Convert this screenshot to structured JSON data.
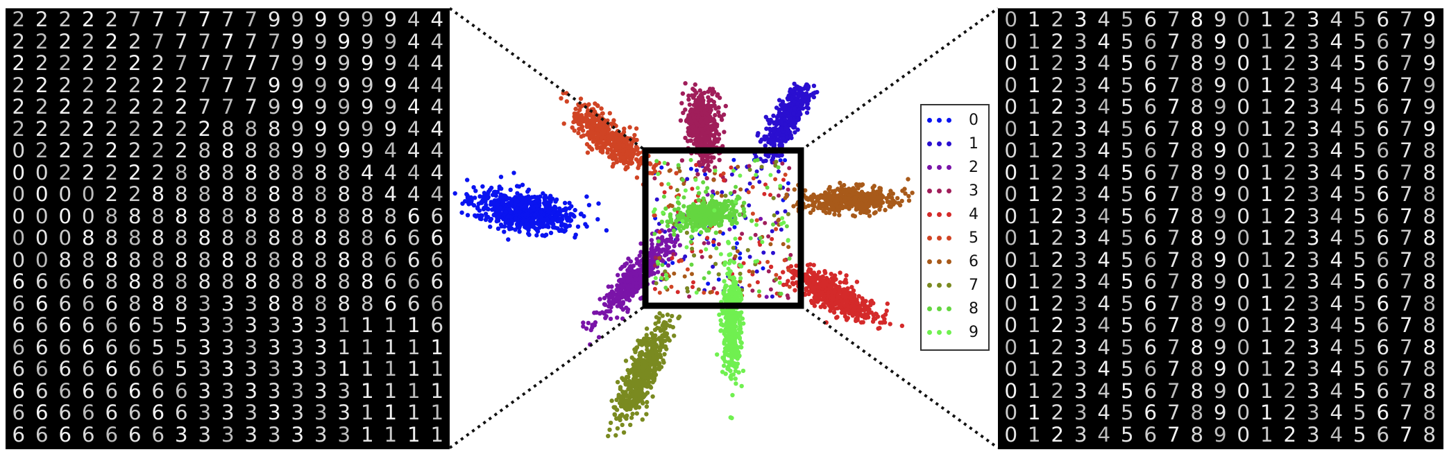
{
  "legend": {
    "items": [
      {
        "label": "0",
        "color": "#0a14f0"
      },
      {
        "label": "1",
        "color": "#2a0fd0"
      },
      {
        "label": "2",
        "color": "#7a14a8"
      },
      {
        "label": "3",
        "color": "#a01e5a"
      },
      {
        "label": "4",
        "color": "#d42a2a"
      },
      {
        "label": "5",
        "color": "#d04424"
      },
      {
        "label": "6",
        "color": "#a85a1a"
      },
      {
        "label": "7",
        "color": "#7a8a20"
      },
      {
        "label": "8",
        "color": "#64d640"
      },
      {
        "label": "9",
        "color": "#70f050"
      }
    ]
  },
  "left_grid": {
    "rows": [
      "2222277777799999944",
      "2222227777779999944",
      "2222222777779999944",
      "2222222277799999944",
      "2222222277799999944",
      "2222222228889999944",
      "0222222288889999444",
      "0022222888888884444",
      "0000228888888888444",
      "0000888888888888866",
      "0008888888888888666",
      "0088888888888888666",
      "6666888888888888666",
      "6666688833388888666",
      "6666665533333311116",
      "6666665533333311111",
      "6666666533333311111",
      "6666666633333331111",
      "6666666633333331111",
      "6666666333333331111"
    ]
  },
  "right_grid": {
    "rows": [
      "0123456789012345679",
      "0123456789012345679",
      "0123456789012345679",
      "0123456789012345679",
      "0123456789012345679",
      "0123456789012345679",
      "0123456789012345678",
      "0123456789012345678",
      "0123456789012345678",
      "0123456789012345678",
      "0123456789012345678",
      "0123456789012345678",
      "0123456789012345678",
      "0123456789012345678",
      "0123456789012345678",
      "0123456789012345678",
      "0123456789012345678",
      "0123456789012345678",
      "0123456789012345678",
      "0123456789012345678"
    ]
  },
  "clusters": [
    {
      "digit": "0",
      "color": "#0a14f0"
    },
    {
      "digit": "1",
      "color": "#2a0fd0"
    },
    {
      "digit": "2",
      "color": "#7a14a8"
    },
    {
      "digit": "3",
      "color": "#a01e5a"
    },
    {
      "digit": "4",
      "color": "#d42a2a"
    },
    {
      "digit": "5",
      "color": "#d04424"
    },
    {
      "digit": "6",
      "color": "#a85a1a"
    },
    {
      "digit": "7",
      "color": "#7a8a20"
    },
    {
      "digit": "8",
      "color": "#64d640"
    },
    {
      "digit": "9",
      "color": "#70f050"
    }
  ]
}
